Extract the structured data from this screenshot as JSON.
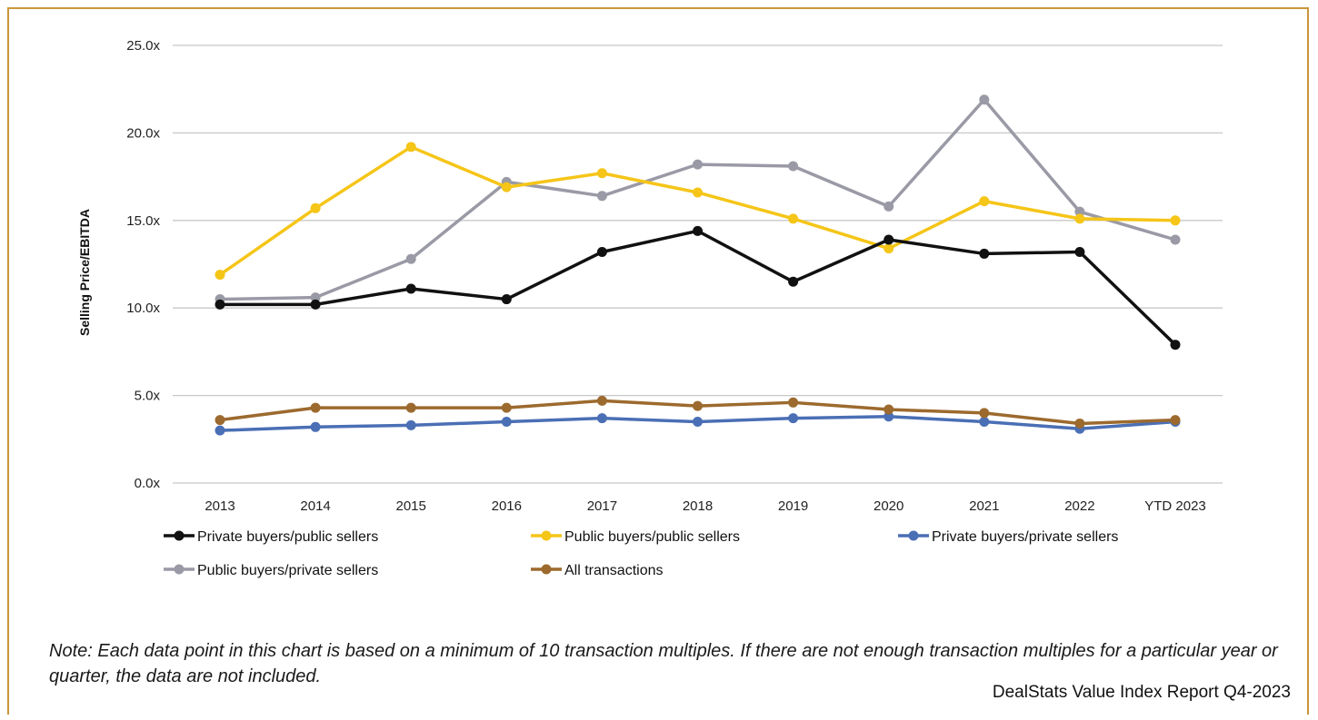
{
  "chart_data": {
    "type": "line",
    "title": "",
    "ylabel": "Selling Price/EBITDA",
    "xlabel": "",
    "categories": [
      "2013",
      "2014",
      "2015",
      "2016",
      "2017",
      "2018",
      "2019",
      "2020",
      "2021",
      "2022",
      "YTD 2023"
    ],
    "yticks": [
      "0.0x",
      "5.0x",
      "10.0x",
      "15.0x",
      "20.0x",
      "25.0x"
    ],
    "ylim": [
      0,
      25
    ],
    "grid": true,
    "legend_position": "bottom",
    "series": [
      {
        "name": "Private buyers/public sellers",
        "color": "#111111",
        "values": [
          10.2,
          10.2,
          11.1,
          10.5,
          13.2,
          14.4,
          11.5,
          13.9,
          13.1,
          13.2,
          7.9
        ]
      },
      {
        "name": "Public buyers/public sellers",
        "color": "#f5c518",
        "values": [
          11.9,
          15.7,
          19.2,
          16.9,
          17.7,
          16.6,
          15.1,
          13.4,
          16.1,
          15.1,
          15.0
        ]
      },
      {
        "name": "Private buyers/private sellers",
        "color": "#4a6fb5",
        "values": [
          3.0,
          3.2,
          3.3,
          3.5,
          3.7,
          3.5,
          3.7,
          3.8,
          3.5,
          3.1,
          3.5
        ]
      },
      {
        "name": "Public buyers/private sellers",
        "color": "#9a9aa6",
        "values": [
          10.5,
          10.6,
          12.8,
          17.2,
          16.4,
          18.2,
          18.1,
          15.8,
          21.9,
          15.5,
          13.9
        ]
      },
      {
        "name": "All transactions",
        "color": "#9c6a2e",
        "values": [
          3.6,
          4.3,
          4.3,
          4.3,
          4.7,
          4.4,
          4.6,
          4.2,
          4.0,
          3.4,
          3.6
        ]
      }
    ]
  },
  "note": "Note: Each data point in this chart is based on a minimum of 10 transaction multiples. If there are not enough transaction multiples for a particular year or quarter, the data are not included.",
  "source": "DealStats Value Index Report Q4-2023"
}
